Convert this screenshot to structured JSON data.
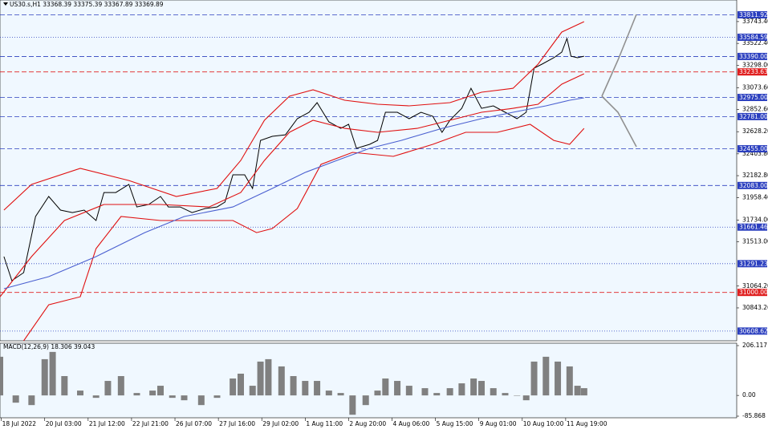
{
  "chart_data": [
    {
      "type": "line",
      "title": "US30.s,H1  33368.39 33375.39 33367.89 33369.89",
      "xlim": [
        0,
        560
      ],
      "xticks": [
        {
          "value": 1,
          "label": "18 Jul 2022"
        },
        {
          "value": 34,
          "label": "20 Jul 03:00"
        },
        {
          "value": 67,
          "label": "21 Jul 12:00"
        },
        {
          "value": 100,
          "label": "22 Jul 21:00"
        },
        {
          "value": 133,
          "label": "26 Jul 07:00"
        },
        {
          "value": 166,
          "label": "27 Jul 16:00"
        },
        {
          "value": 199,
          "label": "29 Jul 02:00"
        },
        {
          "value": 232,
          "label": "1 Aug 11:00"
        },
        {
          "value": 265,
          "label": "2 Aug 20:00"
        },
        {
          "value": 298,
          "label": "4 Aug 06:00"
        },
        {
          "value": 331,
          "label": "5 Aug 15:00"
        },
        {
          "value": 364,
          "label": "9 Aug 01:00"
        },
        {
          "value": 397,
          "label": "10 Aug 10:00"
        },
        {
          "value": 430,
          "label": "11 Aug 19:00"
        }
      ],
      "ylim": [
        30510,
        33962
      ],
      "yticks": [
        {
          "value": 33743.4,
          "label": "33743.40"
        },
        {
          "value": 33522.4,
          "label": "33522.40"
        },
        {
          "value": 33298,
          "label": "33298.00"
        },
        {
          "value": 33073.6,
          "label": "33073.60"
        },
        {
          "value": 32852.6,
          "label": "32852.60"
        },
        {
          "value": 32628.2,
          "label": "32628.20"
        },
        {
          "value": 32403.8,
          "label": "32403.80"
        },
        {
          "value": 32182.8,
          "label": "32182.80"
        },
        {
          "value": 31958.4,
          "label": "31958.40"
        },
        {
          "value": 31734,
          "label": "31734.00"
        },
        {
          "value": 31513,
          "label": "31513.00"
        },
        {
          "value": 31064.2,
          "label": "31064.20"
        },
        {
          "value": 30843.26,
          "label": "30843.26"
        }
      ],
      "levels": [
        {
          "value": 33811.92,
          "color": "#2b3fbf",
          "style": "dashed"
        },
        {
          "value": 33584.59,
          "color": "#2b3fbf",
          "style": "dotted"
        },
        {
          "value": 33390,
          "label": "33390.00",
          "color": "#2b3fbf",
          "style": "dashed"
        },
        {
          "value": 33233.63,
          "color": "#e02020",
          "style": "dashed"
        },
        {
          "value": 32975,
          "label": "32975.00",
          "color": "#2b3fbf",
          "style": "dashed"
        },
        {
          "value": 32781,
          "label": "32781.00",
          "color": "#2b3fbf",
          "style": "dashed"
        },
        {
          "value": 32455,
          "label": "32455.00",
          "color": "#2b3fbf",
          "style": "dashed"
        },
        {
          "value": 32083,
          "label": "32083.00",
          "color": "#2b3fbf",
          "style": "dashed"
        },
        {
          "value": 31661.46,
          "color": "#2b3fbf",
          "style": "dotted"
        },
        {
          "value": 31291.23,
          "color": "#2b3fbf",
          "style": "dotted"
        },
        {
          "value": 31000,
          "label": "31000.00",
          "color": "#e02020",
          "style": "dashed"
        },
        {
          "value": 30608.62,
          "color": "#2b3fbf",
          "style": "dotted"
        }
      ],
      "series": [
        {
          "name": "Price",
          "color": "#000000",
          "x": [
            3,
            9,
            18,
            27,
            37,
            46,
            55,
            64,
            73,
            79,
            88,
            98,
            104,
            113,
            122,
            128,
            137,
            146,
            156,
            165,
            171,
            177,
            186,
            192,
            198,
            207,
            217,
            226,
            235,
            241,
            250,
            259,
            265,
            271,
            281,
            287,
            293,
            302,
            311,
            320,
            329,
            336,
            342,
            351,
            358,
            366,
            375,
            384,
            393,
            400,
            406,
            412,
            421,
            427,
            431,
            434,
            439,
            444
          ],
          "values": [
            31363,
            31119,
            31200,
            31769,
            31972,
            31834,
            31809,
            31834,
            31728,
            32012,
            32012,
            32094,
            31866,
            31891,
            31972,
            31866,
            31866,
            31809,
            31850,
            31866,
            31915,
            32191,
            32191,
            32053,
            32540,
            32581,
            32597,
            32760,
            32825,
            32922,
            32727,
            32662,
            32703,
            32459,
            32500,
            32540,
            32825,
            32825,
            32760,
            32825,
            32784,
            32622,
            32744,
            32865,
            33068,
            32865,
            32890,
            32825,
            32760,
            32825,
            33272,
            33312,
            33377,
            33434,
            33572,
            33393,
            33377,
            33393
          ]
        },
        {
          "name": "Bands Upper",
          "color": "#e01010",
          "x": [
            3,
            24,
            61,
            98,
            134,
            165,
            183,
            201,
            220,
            238,
            262,
            287,
            311,
            342,
            366,
            390,
            409,
            427,
            444
          ],
          "values": [
            31834,
            32094,
            32256,
            32134,
            31972,
            32053,
            32337,
            32744,
            32987,
            33052,
            32947,
            32906,
            32890,
            32922,
            33028,
            33068,
            33312,
            33637,
            33743
          ]
        },
        {
          "name": "Bands Middle",
          "color": "#e01010",
          "x": [
            0,
            24,
            49,
            79,
            122,
            159,
            183,
            201,
            220,
            238,
            262,
            287,
            317,
            342,
            366,
            390,
            409,
            427,
            444
          ],
          "values": [
            30956,
            31363,
            31728,
            31891,
            31891,
            31866,
            32012,
            32337,
            32622,
            32744,
            32662,
            32622,
            32662,
            32744,
            32825,
            32865,
            32906,
            33109,
            33215
          ]
        },
        {
          "name": "Bands Lower",
          "color": "#e01010",
          "x": [
            18,
            37,
            61,
            73,
            92,
            122,
            153,
            177,
            195,
            207,
            226,
            244,
            268,
            299,
            329,
            354,
            378,
            403,
            421,
            433,
            444
          ],
          "values": [
            30510,
            30875,
            30956,
            31444,
            31769,
            31728,
            31728,
            31728,
            31606,
            31647,
            31850,
            32297,
            32419,
            32378,
            32500,
            32622,
            32622,
            32703,
            32540,
            32500,
            32662
          ]
        },
        {
          "name": "MA",
          "color": "#4a5fd0",
          "x": [
            3,
            37,
            73,
            110,
            140,
            177,
            207,
            232,
            256,
            281,
            305,
            336,
            366,
            390,
            415,
            433,
            444
          ],
          "values": [
            31038,
            31160,
            31363,
            31606,
            31769,
            31866,
            32053,
            32216,
            32337,
            32459,
            32540,
            32662,
            32760,
            32825,
            32890,
            32947,
            32971
          ]
        }
      ]
    },
    {
      "type": "bar",
      "title": "MACD(12,26,9) 18.306 39.043",
      "color": "#808080",
      "xlim": [
        0,
        560
      ],
      "ylim": [
        -85.868,
        206.117
      ],
      "yticks": [
        206.117,
        {
          "value": 0,
          "label": "0.00"
        },
        -85.868
      ],
      "x": [
        0,
        12,
        24,
        34,
        40,
        49,
        61,
        73,
        82,
        92,
        104,
        116,
        122,
        131,
        140,
        153,
        165,
        177,
        183,
        192,
        198,
        204,
        214,
        223,
        232,
        241,
        250,
        259,
        268,
        278,
        287,
        293,
        302,
        311,
        323,
        332,
        342,
        351,
        360,
        366,
        375,
        384,
        393,
        400,
        406,
        415,
        424,
        433,
        439,
        444
      ],
      "values": [
        160,
        -30,
        -40,
        150,
        180,
        80,
        20,
        -10,
        60,
        80,
        10,
        20,
        40,
        -10,
        -20,
        -40,
        -10,
        70,
        90,
        40,
        140,
        150,
        120,
        80,
        60,
        60,
        20,
        10,
        -80,
        -40,
        20,
        70,
        60,
        40,
        30,
        10,
        30,
        50,
        70,
        60,
        30,
        10,
        0,
        -20,
        140,
        160,
        140,
        120,
        40,
        30
      ]
    }
  ]
}
